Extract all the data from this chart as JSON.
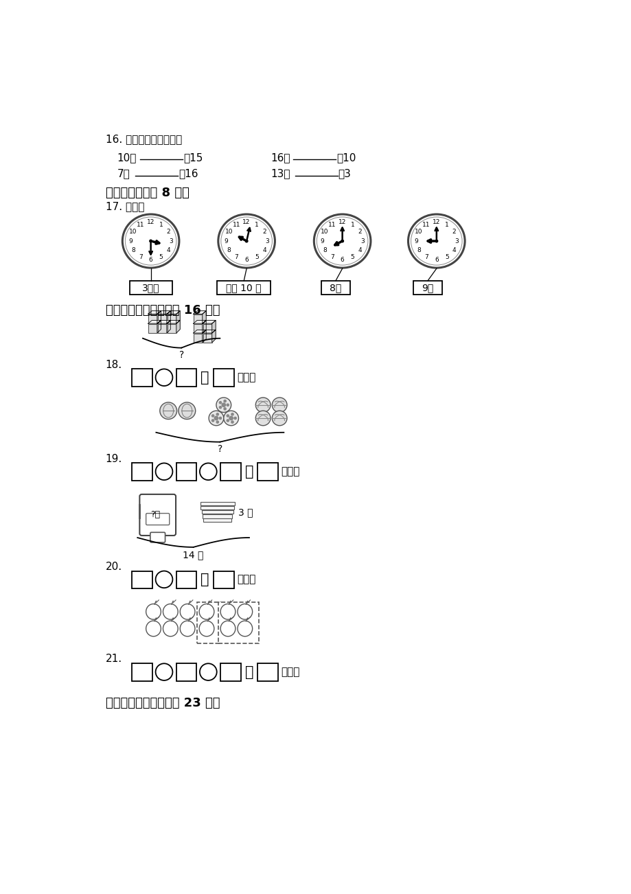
{
  "bg_color": "#ffffff",
  "section16_title": "16. 在横线上填合适的数",
  "section4_title": "四、连一连（共 8 分）",
  "section17_title": "17. 连一连",
  "clock_labels": [
    "3时半",
    "刚过 10 时",
    "8时",
    "9时"
  ],
  "section5_title": "五、我会看图列式（共 16 分）",
  "q18_label": "18.",
  "q19_label": "19.",
  "q20_label": "20.",
  "q21_label": "21.",
  "section6_title": "六、我会解决问题（共 23 分）",
  "eq1a_left": "10＋",
  "eq1a_right": "＝15",
  "eq1b_left": "16－",
  "eq1b_right": "＝10",
  "eq2a_left": "7＋",
  "eq2a_right": "＝16",
  "eq2b_left": "13－",
  "eq2b_right": "＝3",
  "unit_ge": "（个）",
  "unit_ben": "（本）",
  "label_14ben": "14 本",
  "label_3ben": "3 本",
  "label_qmark": "?"
}
